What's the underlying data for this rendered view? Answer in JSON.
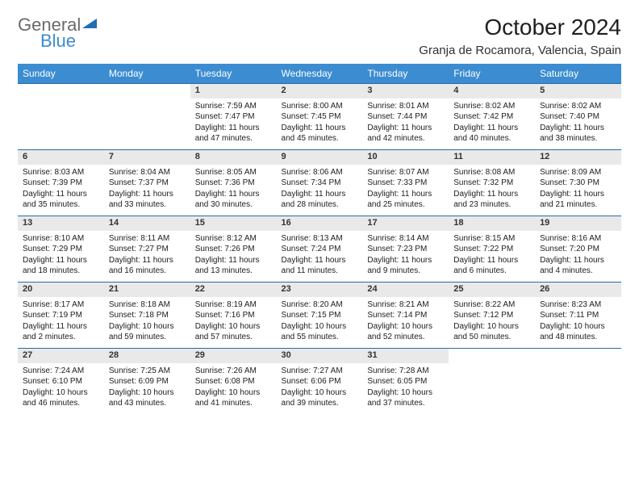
{
  "logo": {
    "text1": "General",
    "text2": "Blue"
  },
  "title": "October 2024",
  "location": "Granja de Rocamora, Valencia, Spain",
  "colors": {
    "header_bg": "#3b8cd1",
    "header_border": "#2c6aa3",
    "daynum_bg": "#e9e9e9",
    "text": "#202020",
    "logo_gray": "#6a6a6a",
    "logo_blue": "#3b8cd1"
  },
  "weekdays": [
    "Sunday",
    "Monday",
    "Tuesday",
    "Wednesday",
    "Thursday",
    "Friday",
    "Saturday"
  ],
  "weeks": [
    [
      null,
      null,
      {
        "n": "1",
        "sr": "7:59 AM",
        "ss": "7:47 PM",
        "dl": "11 hours and 47 minutes."
      },
      {
        "n": "2",
        "sr": "8:00 AM",
        "ss": "7:45 PM",
        "dl": "11 hours and 45 minutes."
      },
      {
        "n": "3",
        "sr": "8:01 AM",
        "ss": "7:44 PM",
        "dl": "11 hours and 42 minutes."
      },
      {
        "n": "4",
        "sr": "8:02 AM",
        "ss": "7:42 PM",
        "dl": "11 hours and 40 minutes."
      },
      {
        "n": "5",
        "sr": "8:02 AM",
        "ss": "7:40 PM",
        "dl": "11 hours and 38 minutes."
      }
    ],
    [
      {
        "n": "6",
        "sr": "8:03 AM",
        "ss": "7:39 PM",
        "dl": "11 hours and 35 minutes."
      },
      {
        "n": "7",
        "sr": "8:04 AM",
        "ss": "7:37 PM",
        "dl": "11 hours and 33 minutes."
      },
      {
        "n": "8",
        "sr": "8:05 AM",
        "ss": "7:36 PM",
        "dl": "11 hours and 30 minutes."
      },
      {
        "n": "9",
        "sr": "8:06 AM",
        "ss": "7:34 PM",
        "dl": "11 hours and 28 minutes."
      },
      {
        "n": "10",
        "sr": "8:07 AM",
        "ss": "7:33 PM",
        "dl": "11 hours and 25 minutes."
      },
      {
        "n": "11",
        "sr": "8:08 AM",
        "ss": "7:32 PM",
        "dl": "11 hours and 23 minutes."
      },
      {
        "n": "12",
        "sr": "8:09 AM",
        "ss": "7:30 PM",
        "dl": "11 hours and 21 minutes."
      }
    ],
    [
      {
        "n": "13",
        "sr": "8:10 AM",
        "ss": "7:29 PM",
        "dl": "11 hours and 18 minutes."
      },
      {
        "n": "14",
        "sr": "8:11 AM",
        "ss": "7:27 PM",
        "dl": "11 hours and 16 minutes."
      },
      {
        "n": "15",
        "sr": "8:12 AM",
        "ss": "7:26 PM",
        "dl": "11 hours and 13 minutes."
      },
      {
        "n": "16",
        "sr": "8:13 AM",
        "ss": "7:24 PM",
        "dl": "11 hours and 11 minutes."
      },
      {
        "n": "17",
        "sr": "8:14 AM",
        "ss": "7:23 PM",
        "dl": "11 hours and 9 minutes."
      },
      {
        "n": "18",
        "sr": "8:15 AM",
        "ss": "7:22 PM",
        "dl": "11 hours and 6 minutes."
      },
      {
        "n": "19",
        "sr": "8:16 AM",
        "ss": "7:20 PM",
        "dl": "11 hours and 4 minutes."
      }
    ],
    [
      {
        "n": "20",
        "sr": "8:17 AM",
        "ss": "7:19 PM",
        "dl": "11 hours and 2 minutes."
      },
      {
        "n": "21",
        "sr": "8:18 AM",
        "ss": "7:18 PM",
        "dl": "10 hours and 59 minutes."
      },
      {
        "n": "22",
        "sr": "8:19 AM",
        "ss": "7:16 PM",
        "dl": "10 hours and 57 minutes."
      },
      {
        "n": "23",
        "sr": "8:20 AM",
        "ss": "7:15 PM",
        "dl": "10 hours and 55 minutes."
      },
      {
        "n": "24",
        "sr": "8:21 AM",
        "ss": "7:14 PM",
        "dl": "10 hours and 52 minutes."
      },
      {
        "n": "25",
        "sr": "8:22 AM",
        "ss": "7:12 PM",
        "dl": "10 hours and 50 minutes."
      },
      {
        "n": "26",
        "sr": "8:23 AM",
        "ss": "7:11 PM",
        "dl": "10 hours and 48 minutes."
      }
    ],
    [
      {
        "n": "27",
        "sr": "7:24 AM",
        "ss": "6:10 PM",
        "dl": "10 hours and 46 minutes."
      },
      {
        "n": "28",
        "sr": "7:25 AM",
        "ss": "6:09 PM",
        "dl": "10 hours and 43 minutes."
      },
      {
        "n": "29",
        "sr": "7:26 AM",
        "ss": "6:08 PM",
        "dl": "10 hours and 41 minutes."
      },
      {
        "n": "30",
        "sr": "7:27 AM",
        "ss": "6:06 PM",
        "dl": "10 hours and 39 minutes."
      },
      {
        "n": "31",
        "sr": "7:28 AM",
        "ss": "6:05 PM",
        "dl": "10 hours and 37 minutes."
      },
      null,
      null
    ]
  ],
  "labels": {
    "sunrise": "Sunrise:",
    "sunset": "Sunset:",
    "daylight": "Daylight:"
  }
}
